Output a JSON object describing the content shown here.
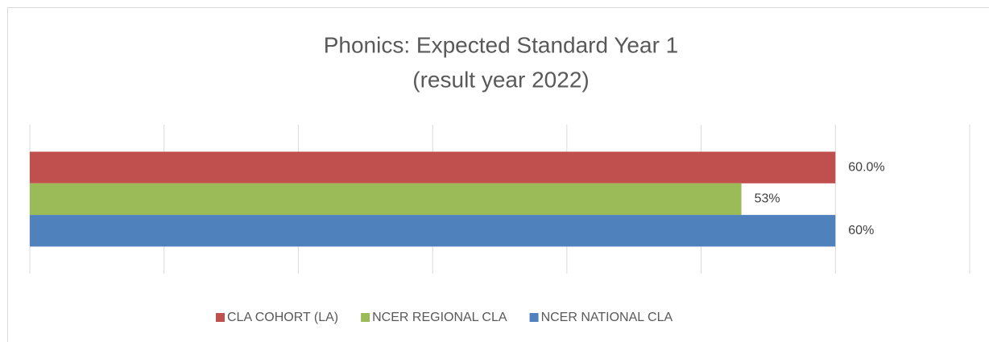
{
  "chart_data": {
    "type": "hbar",
    "title": [
      "Phonics: Expected Standard Year 1",
      "(result year 2022)"
    ],
    "categories": [
      null
    ],
    "series": [
      {
        "name": "CLA COHORT (LA)",
        "color": "#c0504d",
        "values": [
          60
        ],
        "value_labels": [
          "60.0%"
        ]
      },
      {
        "name": "NCER REGIONAL CLA",
        "color": "#9bbb59",
        "values": [
          53
        ],
        "value_labels": [
          "53%"
        ]
      },
      {
        "name": "NCER NATIONAL CLA",
        "color": "#4f81bd",
        "values": [
          60
        ],
        "value_labels": [
          "60%"
        ]
      }
    ],
    "xlim": [
      0,
      70
    ],
    "xticks": [
      0,
      10,
      20,
      30,
      40,
      50,
      60,
      70
    ],
    "grid": true,
    "legend": "bottom"
  }
}
